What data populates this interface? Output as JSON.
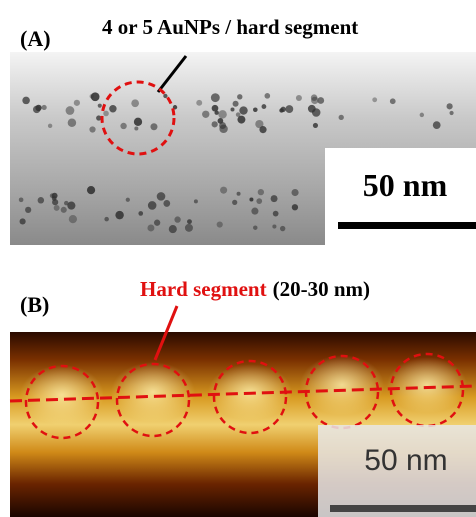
{
  "panel_a": {
    "label": "(A)",
    "annotation": "4 or 5 AuNPs / hard segment",
    "scale_bar": "50 nm"
  },
  "panel_b": {
    "label": "(B)",
    "annotation": "Hard segment",
    "annotation_range": "(20-30 nm)",
    "scale_bar": "50 nm"
  }
}
